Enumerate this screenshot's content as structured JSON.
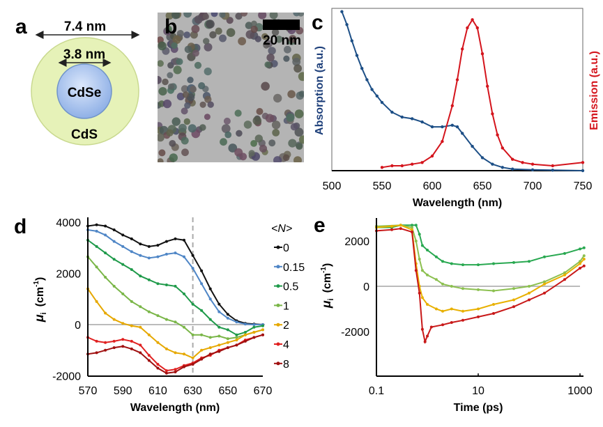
{
  "panel_labels": {
    "a": "a",
    "b": "b",
    "c": "c",
    "d": "d",
    "e": "e"
  },
  "panel_a": {
    "outer_dimension": "7.4 nm",
    "inner_dimension": "3.8 nm",
    "core_label": "CdSe",
    "shell_label": "CdS",
    "colors": {
      "shell": "#e6f2b8",
      "core": "#a9c4ef"
    }
  },
  "panel_b": {
    "scale_bar_label": "20 nm",
    "image": "TEM micrograph of nanocrystals"
  },
  "chart_data": [
    {
      "panel": "c",
      "type": "line",
      "xlabel": "Wavelength (nm)",
      "ylabel_left": "Absorption (a.u.)",
      "ylabel_right": "Emission (a.u.)",
      "xlim": [
        500,
        750
      ],
      "ylim": [
        0,
        1
      ],
      "xticks": [
        "500",
        "550",
        "600",
        "650",
        "700",
        "750"
      ],
      "series": [
        {
          "name": "Absorption",
          "color": "#1d4f86",
          "x": [
            510,
            515,
            520,
            525,
            530,
            535,
            540,
            545,
            550,
            560,
            570,
            580,
            590,
            600,
            610,
            620,
            625,
            630,
            640,
            650,
            660,
            670,
            680,
            700,
            720,
            750
          ],
          "y": [
            0.98,
            0.9,
            0.8,
            0.71,
            0.63,
            0.56,
            0.5,
            0.46,
            0.42,
            0.36,
            0.33,
            0.32,
            0.3,
            0.27,
            0.27,
            0.28,
            0.27,
            0.23,
            0.15,
            0.08,
            0.04,
            0.02,
            0.01,
            0.005,
            0.003,
            0
          ]
        },
        {
          "name": "Emission",
          "color": "#d4141c",
          "x": [
            550,
            560,
            570,
            580,
            590,
            600,
            610,
            620,
            625,
            630,
            635,
            640,
            645,
            650,
            655,
            660,
            665,
            670,
            680,
            690,
            700,
            720,
            750
          ],
          "y": [
            0.02,
            0.03,
            0.03,
            0.04,
            0.05,
            0.09,
            0.18,
            0.4,
            0.56,
            0.75,
            0.88,
            0.93,
            0.88,
            0.72,
            0.52,
            0.35,
            0.22,
            0.14,
            0.07,
            0.05,
            0.04,
            0.03,
            0.05
          ]
        }
      ]
    },
    {
      "panel": "d",
      "type": "line",
      "xlabel": "Wavelength (nm)",
      "ylabel": {
        "symbol": "μ",
        "sub": "i",
        "unit_pre": "(cm",
        "unit_sup": "-1",
        "unit_post": ")"
      },
      "xlim": [
        570,
        670
      ],
      "ylim": [
        -2000,
        4000
      ],
      "xticks": [
        "570",
        "590",
        "610",
        "630",
        "650",
        "670"
      ],
      "yticks": [
        "4000",
        "2000",
        "0",
        "-2000"
      ],
      "reference_line_x": 630,
      "legend_title": "<N>",
      "legend_placement": "right",
      "x": [
        570,
        575,
        580,
        585,
        590,
        595,
        600,
        605,
        610,
        615,
        620,
        625,
        630,
        635,
        640,
        645,
        650,
        655,
        660,
        665,
        670
      ],
      "series": [
        {
          "name": "0",
          "color": "#111111",
          "values": [
            3850,
            3900,
            3850,
            3700,
            3500,
            3350,
            3150,
            3050,
            3100,
            3250,
            3350,
            3300,
            2700,
            2100,
            1400,
            800,
            400,
            150,
            50,
            20,
            0
          ]
        },
        {
          "name": "0.15",
          "color": "#4f86c6",
          "values": [
            3700,
            3650,
            3500,
            3250,
            3050,
            2850,
            2700,
            2600,
            2650,
            2750,
            2800,
            2650,
            2200,
            1600,
            1000,
            500,
            250,
            100,
            20,
            0,
            0
          ]
        },
        {
          "name": "0.5",
          "color": "#1f9a4a",
          "values": [
            3300,
            3050,
            2800,
            2550,
            2350,
            2150,
            1900,
            1750,
            1600,
            1550,
            1500,
            1200,
            800,
            550,
            200,
            -100,
            -200,
            -400,
            -300,
            -100,
            -50
          ]
        },
        {
          "name": "1",
          "color": "#7ab648",
          "values": [
            2650,
            2250,
            1850,
            1500,
            1200,
            900,
            700,
            500,
            350,
            200,
            100,
            -100,
            -400,
            -400,
            -500,
            -450,
            -550,
            -500,
            -400,
            -300,
            -200
          ]
        },
        {
          "name": "2",
          "color": "#e6a800",
          "values": [
            1400,
            900,
            450,
            200,
            50,
            -50,
            -100,
            -400,
            -700,
            -950,
            -1100,
            -1150,
            -1300,
            -1000,
            -900,
            -800,
            -700,
            -600,
            -400,
            -300,
            -200
          ]
        },
        {
          "name": "4",
          "color": "#e02020",
          "values": [
            -500,
            -650,
            -700,
            -650,
            -580,
            -650,
            -800,
            -1200,
            -1550,
            -1800,
            -1750,
            -1600,
            -1500,
            -1300,
            -1200,
            -1000,
            -900,
            -800,
            -600,
            -500,
            -400
          ]
        },
        {
          "name": "8",
          "color": "#a01010",
          "values": [
            -1150,
            -1100,
            -1000,
            -900,
            -850,
            -950,
            -1100,
            -1400,
            -1700,
            -1900,
            -1850,
            -1650,
            -1550,
            -1350,
            -1150,
            -1050,
            -900,
            -800,
            -650,
            -500,
            -400
          ]
        }
      ]
    },
    {
      "panel": "e",
      "type": "line",
      "xlabel": "Time (ps)",
      "ylabel": {
        "symbol": "μ",
        "sub": "i",
        "unit_pre": "(cm",
        "unit_sup": "-1",
        "unit_post": ")"
      },
      "xscale": "log",
      "xlim": [
        0.1,
        1200
      ],
      "ylim": [
        -4000,
        3000
      ],
      "xticks": [
        "0.1",
        "10",
        "1000"
      ],
      "yticks": [
        "2000",
        "0",
        "-2000"
      ],
      "series": [
        {
          "color": "#28a850",
          "x": [
            0.1,
            0.2,
            0.3,
            0.5,
            0.6,
            0.7,
            0.8,
            1,
            1.5,
            2,
            3,
            5,
            10,
            20,
            50,
            100,
            200,
            500,
            1000,
            1200
          ],
          "y": [
            2600,
            2600,
            2700,
            2700,
            2700,
            2300,
            1800,
            1600,
            1300,
            1100,
            1000,
            950,
            950,
            1000,
            1050,
            1100,
            1300,
            1450,
            1650,
            1700
          ]
        },
        {
          "color": "#8cc050",
          "x": [
            0.1,
            0.3,
            0.5,
            0.6,
            0.7,
            0.8,
            1,
            1.5,
            2,
            3,
            5,
            10,
            20,
            50,
            100,
            200,
            500,
            1000,
            1200
          ],
          "y": [
            2650,
            2700,
            2600,
            2000,
            1200,
            700,
            500,
            300,
            100,
            0,
            -100,
            -150,
            -200,
            -100,
            0,
            200,
            600,
            1100,
            1350
          ]
        },
        {
          "color": "#e8b000",
          "x": [
            0.1,
            0.2,
            0.3,
            0.5,
            0.6,
            0.7,
            0.8,
            1,
            1.5,
            2,
            3,
            5,
            10,
            20,
            50,
            100,
            200,
            500,
            1000,
            1200
          ],
          "y": [
            2600,
            2650,
            2700,
            2500,
            1000,
            0,
            -500,
            -800,
            -1000,
            -1100,
            -1000,
            -1100,
            -1000,
            -800,
            -600,
            -300,
            100,
            500,
            1000,
            1200
          ]
        },
        {
          "color": "#c81818",
          "x": [
            0.1,
            0.2,
            0.3,
            0.5,
            0.6,
            0.7,
            0.8,
            0.9,
            1,
            1.2,
            2,
            3,
            5,
            10,
            20,
            50,
            100,
            200,
            500,
            1000,
            1200
          ],
          "y": [
            2450,
            2500,
            2550,
            2400,
            700,
            -300,
            -1900,
            -2450,
            -2200,
            -1800,
            -1700,
            -1600,
            -1500,
            -1350,
            -1200,
            -900,
            -600,
            -300,
            300,
            800,
            900
          ]
        }
      ]
    }
  ]
}
